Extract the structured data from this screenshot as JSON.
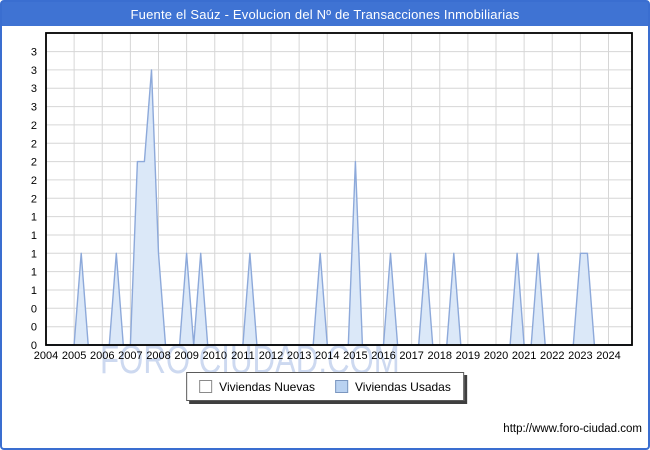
{
  "window": {
    "frame_color": "#3a6ed0",
    "bg": "#ffffff"
  },
  "title_bar": {
    "text": "Fuente el Saúz - Evolucion del Nº de Transacciones Inmobiliarias",
    "bg": "#3f73d3",
    "fg": "#ffffff"
  },
  "watermark": {
    "text": "FORO CIUDAD.COM",
    "color": "#cdd9f0"
  },
  "footer": {
    "url": "http://www.foro-ciudad.com"
  },
  "legend": {
    "items": [
      {
        "label": "Viviendas Nuevas",
        "swatch_fill": "#ffffff",
        "swatch_border": "#8a8a8a"
      },
      {
        "label": "Viviendas Usadas",
        "swatch_fill": "#b9d2f1",
        "swatch_border": "#7b96bf"
      }
    ]
  },
  "chart_data": {
    "type": "area",
    "title": "Fuente el Saúz - Evolucion del Nº de Transacciones Inmobiliarias",
    "x_years": [
      2004,
      2005,
      2006,
      2007,
      2008,
      2009,
      2010,
      2011,
      2012,
      2013,
      2014,
      2015,
      2016,
      2017,
      2018,
      2019,
      2020,
      2021,
      2022,
      2023,
      2024
    ],
    "x_unit": "quarterly points, 4 per year",
    "ylim": [
      0,
      3.2
    ],
    "grid": true,
    "grid_color": "#d6d6d6",
    "axis_color": "#000000",
    "legend_position": "bottom",
    "y_ticks": [
      {
        "value": 0.0,
        "label": "0"
      },
      {
        "value": 0.2,
        "label": "0"
      },
      {
        "value": 0.4,
        "label": "0"
      },
      {
        "value": 0.6,
        "label": "1"
      },
      {
        "value": 0.8,
        "label": "1"
      },
      {
        "value": 1.0,
        "label": "1"
      },
      {
        "value": 1.2,
        "label": "1"
      },
      {
        "value": 1.4,
        "label": "1"
      },
      {
        "value": 1.6,
        "label": "2"
      },
      {
        "value": 1.8,
        "label": "2"
      },
      {
        "value": 2.0,
        "label": "2"
      },
      {
        "value": 2.2,
        "label": "2"
      },
      {
        "value": 2.4,
        "label": "2"
      },
      {
        "value": 2.6,
        "label": "3"
      },
      {
        "value": 2.8,
        "label": "3"
      },
      {
        "value": 3.0,
        "label": "3"
      },
      {
        "value": 3.2,
        "label": "3"
      }
    ],
    "series": [
      {
        "name": "Viviendas Nuevas",
        "fill": "#ffffff",
        "stroke": "#b0b0b0",
        "default_value": 0,
        "points": {}
      },
      {
        "name": "Viviendas Usadas",
        "fill": "#dbe8f8",
        "stroke": "#8da9da",
        "default_value": 0,
        "points": {
          "2005-Q2": 1,
          "2006-Q3": 1,
          "2007-Q2": 2,
          "2007-Q3": 2,
          "2007-Q4": 3,
          "2008-Q1": 1,
          "2009-Q1": 1,
          "2009-Q3": 1,
          "2011-Q2": 1,
          "2013-Q4": 1,
          "2015-Q1": 2,
          "2016-Q2": 1,
          "2017-Q3": 1,
          "2018-Q3": 1,
          "2020-Q4": 1,
          "2021-Q3": 1,
          "2023-Q1": 1,
          "2023-Q2": 1
        }
      }
    ]
  }
}
